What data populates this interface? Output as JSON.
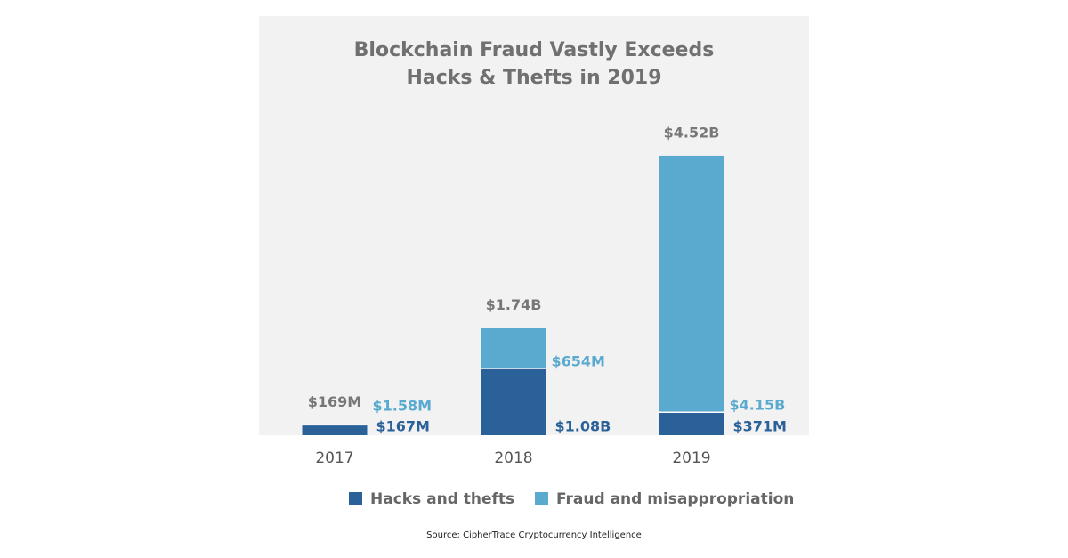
{
  "chart_data": {
    "type": "stacked-bar",
    "title": [
      "Blockchain Fraud Vastly Exceeds",
      "Hacks & Thefts in 2019"
    ],
    "categories": [
      "2017",
      "2018",
      "2019"
    ],
    "series": [
      {
        "name": "Hacks and thefts",
        "color": "#2a6199",
        "values": [
          167,
          1080,
          371
        ],
        "value_labels": [
          "$167M",
          "$1.08B",
          "$371M"
        ]
      },
      {
        "name": "Fraud and misappropriation",
        "color": "#5aaad0",
        "values": [
          1.58,
          654,
          4150
        ],
        "value_labels": [
          "$1.58M",
          "$654M",
          "$4.15B"
        ]
      }
    ],
    "totals": {
      "values": [
        169,
        1740,
        4520
      ],
      "value_labels": [
        "$169M",
        "$1.74B",
        "$4.52B"
      ]
    },
    "source": "Source: CipherTrace Cryptocurrency Intelligence"
  }
}
